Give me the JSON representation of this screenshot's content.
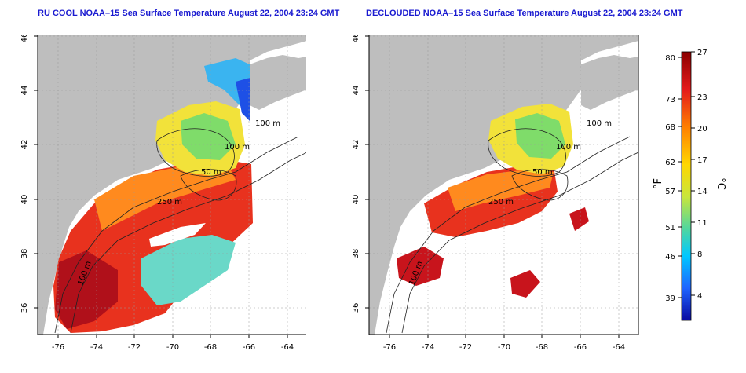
{
  "panels": [
    {
      "title": "RU COOL NOAA–15 Sea Surface Temperature August 22, 2004 23:24 GMT",
      "x_ticks": [
        "-76",
        "-74",
        "-72",
        "-70",
        "-68",
        "-66",
        "-64"
      ],
      "y_ticks": [
        "36",
        "38",
        "40",
        "42",
        "44",
        "46"
      ],
      "contour_labels": [
        "100 m",
        "100 m",
        "50 m",
        "250 m",
        "100 m"
      ]
    },
    {
      "title": "DECLOUDED NOAA–15 Sea Surface Temperature August 22, 2004 23:24 GMT",
      "x_ticks": [
        "-76",
        "-74",
        "-72",
        "-70",
        "-68",
        "-66",
        "-64"
      ],
      "y_ticks": [
        "36",
        "38",
        "40",
        "42",
        "44",
        "46"
      ],
      "contour_labels": [
        "100 m",
        "100 m",
        "50 m",
        "250 m",
        "100 m"
      ]
    }
  ],
  "colorbar": {
    "f_label": "°F",
    "c_label": "°C",
    "f_ticks": [
      "80",
      "73",
      "68",
      "62",
      "57",
      "51",
      "46",
      "39"
    ],
    "c_ticks": [
      "27",
      "23",
      "20",
      "17",
      "14",
      "11",
      "8",
      "4"
    ],
    "colors": [
      "#8b0000",
      "#e41a1c",
      "#ff7f00",
      "#ffd700",
      "#c8e63c",
      "#4fd6a0",
      "#00c8ff",
      "#1e64ff",
      "#0a0aa0"
    ]
  },
  "colors": {
    "land": "#bebebe",
    "title": "#1a1ad0"
  }
}
